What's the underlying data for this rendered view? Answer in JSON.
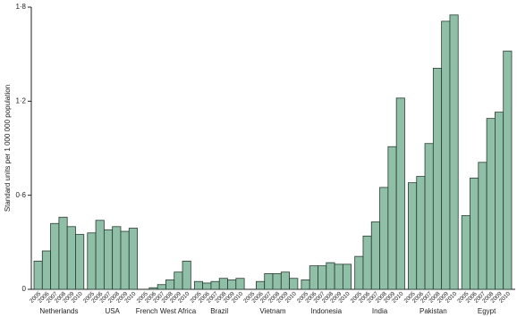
{
  "chart_data": {
    "type": "grouped-bar",
    "y_label": "Standard units per 1 000 000 population",
    "categories": [
      "Netherlands",
      "USA",
      "French West Africa",
      "Brazil",
      "Vietnam",
      "Indonesia",
      "India",
      "Pakistan",
      "Egypt"
    ],
    "years": [
      "2005",
      "2006",
      "2007",
      "2008",
      "2009",
      "2010"
    ],
    "values": [
      [
        0.18,
        0.245,
        0.42,
        0.46,
        0.4,
        0.35
      ],
      [
        0.36,
        0.44,
        0.38,
        0.4,
        0.37,
        0.39
      ],
      [
        0.0,
        0.01,
        0.03,
        0.06,
        0.11,
        0.18
      ],
      [
        0.05,
        0.04,
        0.05,
        0.07,
        0.06,
        0.07
      ],
      [
        0.0,
        0.05,
        0.1,
        0.1,
        0.11,
        0.07
      ],
      [
        0.06,
        0.15,
        0.15,
        0.17,
        0.16,
        0.16
      ],
      [
        0.21,
        0.34,
        0.43,
        0.65,
        0.91,
        1.22
      ],
      [
        0.68,
        0.72,
        0.93,
        1.41,
        1.71,
        1.75
      ],
      [
        0.47,
        0.71,
        0.81,
        1.09,
        1.13,
        1.52
      ]
    ],
    "color": "#8fbfa6",
    "ylim": [
      0,
      1.8
    ],
    "yticks": [
      0,
      {
        "value": 0.6,
        "label": "0·6"
      },
      {
        "value": 1.2,
        "label": "1·2"
      },
      {
        "value": 1.8,
        "label": "1·8"
      }
    ]
  }
}
